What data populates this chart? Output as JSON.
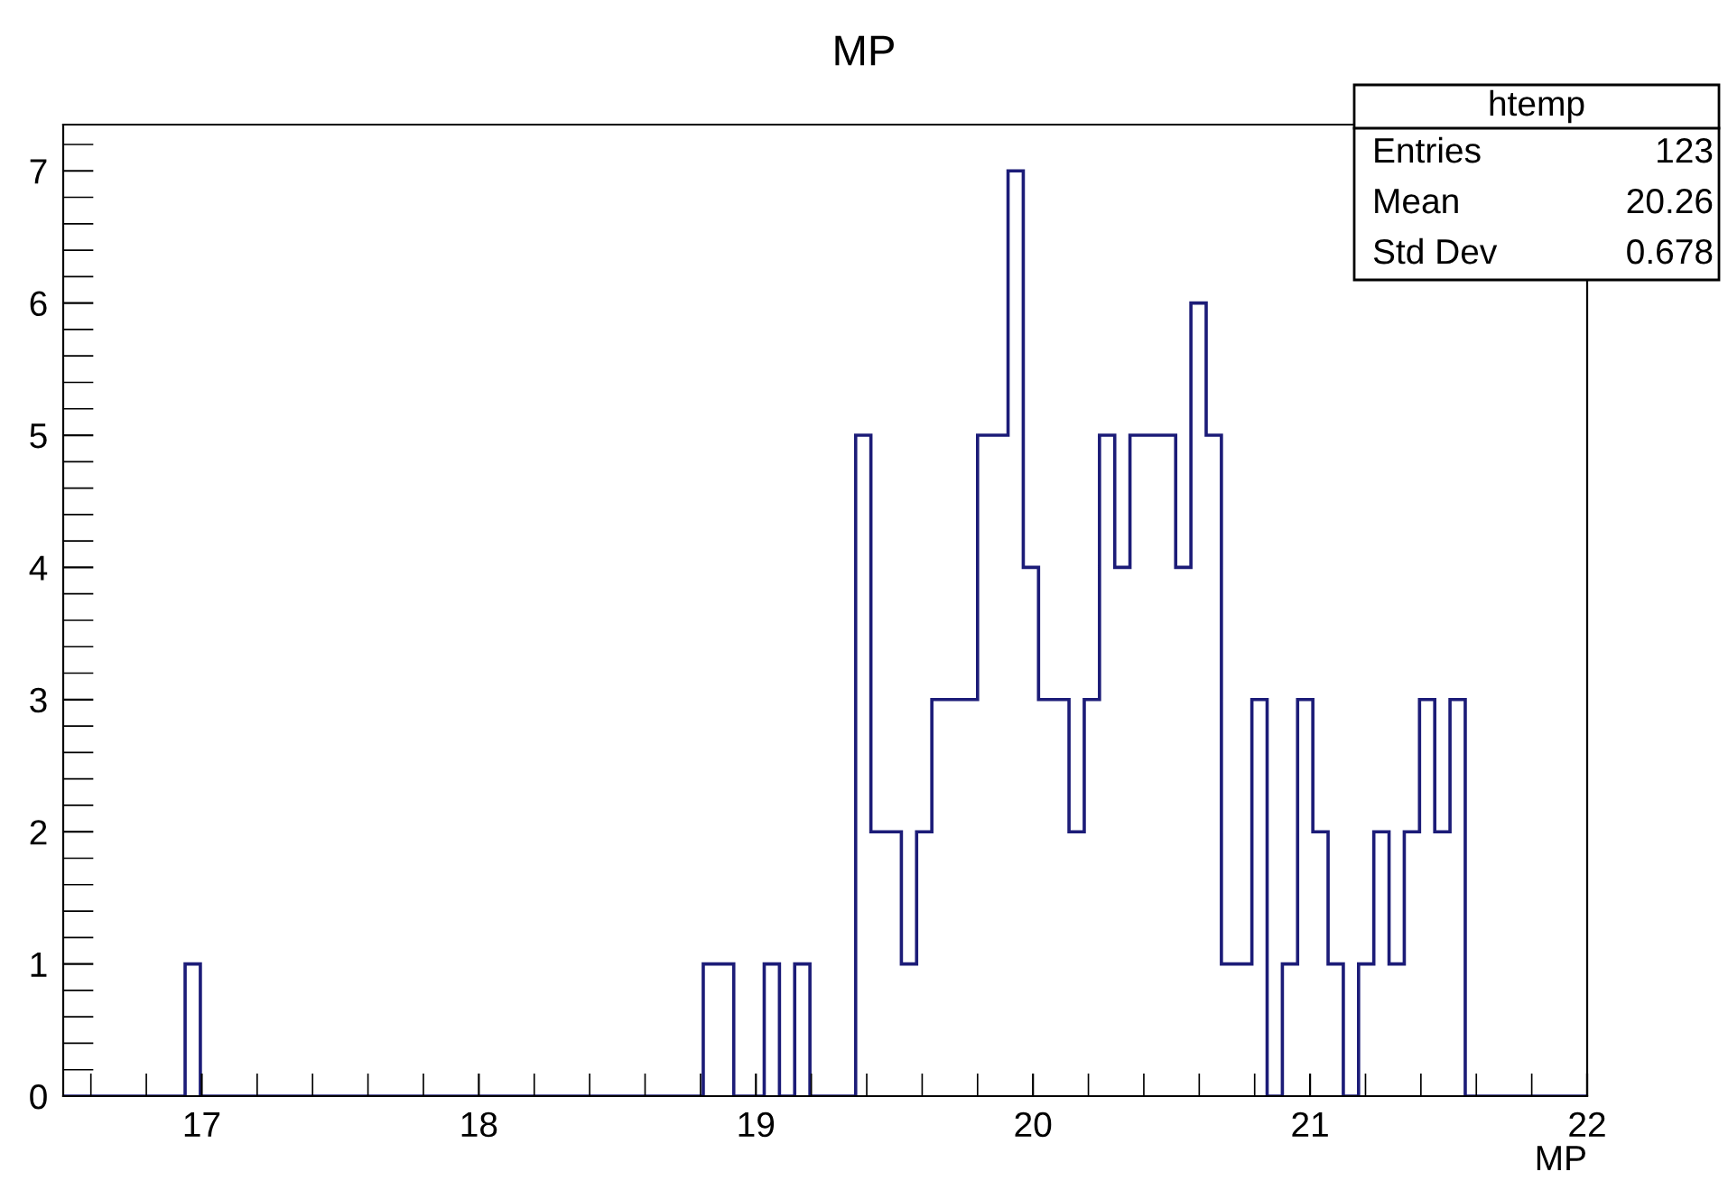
{
  "chart_data": {
    "type": "histogram",
    "title": "MP",
    "xlabel": "MP",
    "bins": [
      16.5,
      16.555,
      16.61,
      16.665,
      16.72,
      16.775,
      16.83,
      16.885,
      16.94,
      16.995,
      17.05,
      17.105,
      17.16,
      17.215,
      17.27,
      17.325,
      17.38,
      17.435,
      17.49,
      17.545,
      17.6,
      17.655,
      17.71,
      17.765,
      17.82,
      17.875,
      17.93,
      17.985,
      18.04,
      18.095,
      18.15,
      18.205,
      18.26,
      18.315,
      18.37,
      18.425,
      18.48,
      18.535,
      18.59,
      18.645,
      18.7,
      18.755,
      18.81,
      18.865,
      18.92,
      18.975,
      19.03,
      19.085,
      19.14,
      19.195,
      19.25,
      19.305,
      19.36,
      19.415,
      19.47,
      19.525,
      19.58,
      19.635,
      19.69,
      19.745,
      19.8,
      19.855,
      19.91,
      19.965,
      20.02,
      20.075,
      20.13,
      20.185,
      20.24,
      20.295,
      20.35,
      20.405,
      20.46,
      20.515,
      20.57,
      20.625,
      20.68,
      20.735,
      20.79,
      20.845,
      20.9,
      20.955,
      21.01,
      21.065,
      21.12,
      21.175,
      21.23,
      21.285,
      21.34,
      21.395,
      21.45,
      21.505,
      21.56,
      21.615,
      21.67,
      21.725,
      21.78,
      21.835,
      21.89,
      21.945,
      22.0
    ],
    "values": [
      0,
      0,
      0,
      0,
      0,
      0,
      0,
      0,
      1,
      0,
      0,
      0,
      0,
      0,
      0,
      0,
      0,
      0,
      0,
      0,
      0,
      0,
      0,
      0,
      0,
      0,
      0,
      0,
      0,
      0,
      0,
      0,
      0,
      0,
      0,
      0,
      0,
      0,
      0,
      0,
      0,
      0,
      1,
      1,
      0,
      0,
      1,
      0,
      1,
      0,
      0,
      0,
      5,
      2,
      2,
      1,
      2,
      3,
      3,
      3,
      5,
      5,
      7,
      4,
      3,
      3,
      2,
      3,
      5,
      4,
      5,
      5,
      5,
      4,
      6,
      5,
      1,
      1,
      3,
      0,
      1,
      3,
      2,
      1,
      0,
      1,
      2,
      1,
      2,
      3,
      2,
      3,
      0,
      0,
      0,
      0,
      0,
      0,
      0,
      0
    ],
    "color": "#1c1c78",
    "xlim": [
      16.5,
      22
    ],
    "ylim": [
      0,
      7.35
    ],
    "xticks": [
      17,
      18,
      19,
      20,
      21,
      22
    ],
    "yticks": [
      0,
      1,
      2,
      3,
      4,
      5,
      6,
      7
    ],
    "annotations": [
      "htemp",
      "Entries",
      "123",
      "Mean",
      "20.26",
      "Std Dev",
      "0.678"
    ]
  }
}
